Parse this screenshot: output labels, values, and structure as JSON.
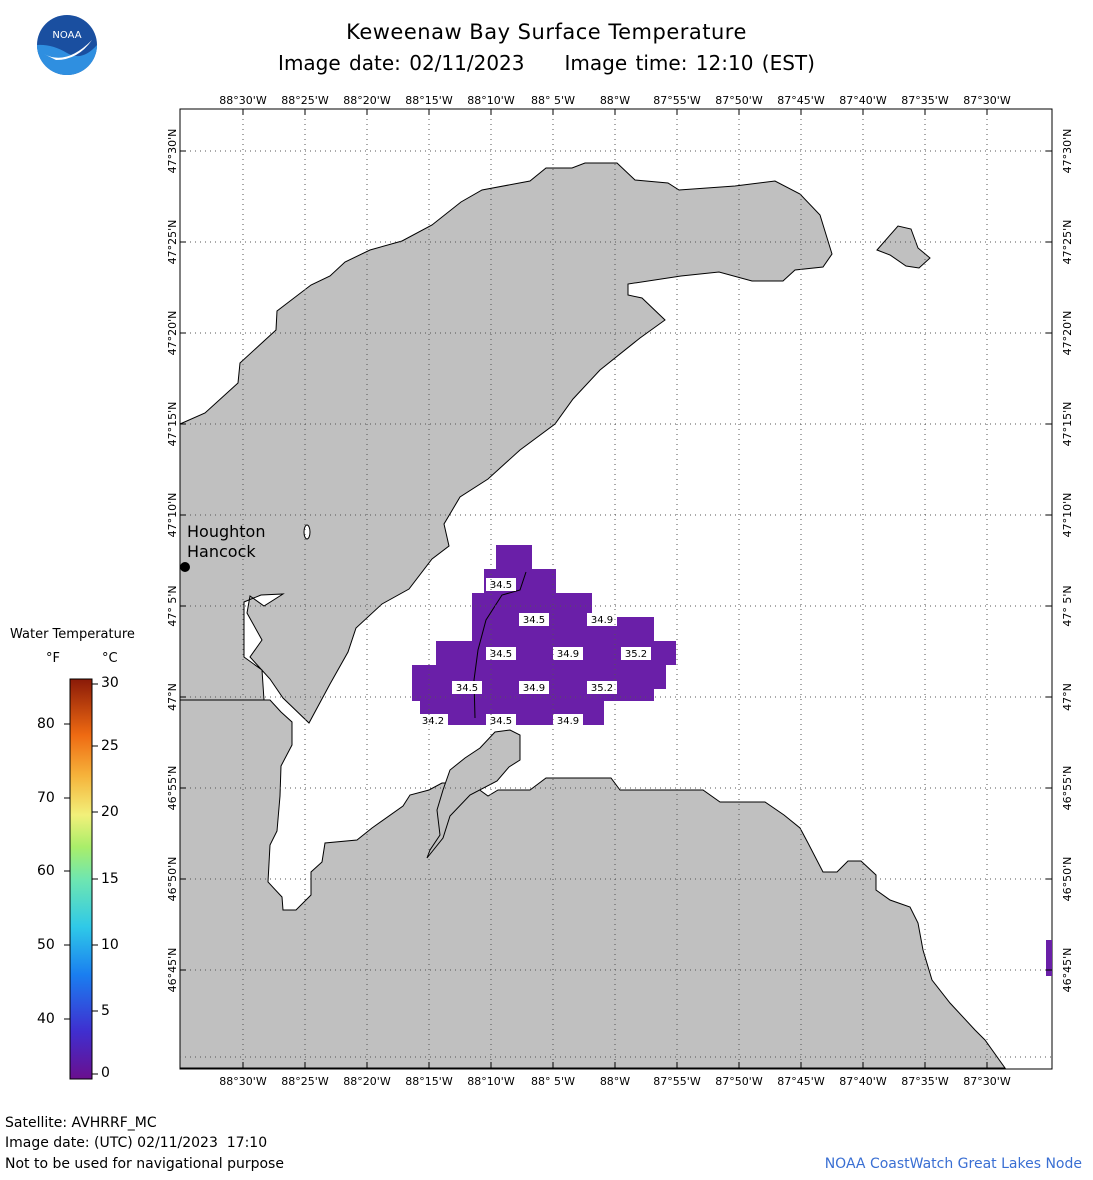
{
  "header": {
    "title": "Keweenaw Bay Surface Temperature",
    "image_date": "Image date: 02/11/2023",
    "image_time": "Image time: 12:10 (EST)"
  },
  "logo": {
    "text": "NOAA",
    "icon": "noaa-logo"
  },
  "map": {
    "lon_labels": [
      "88°30'W",
      "88°25'W",
      "88°20'W",
      "88°15'W",
      "88°10'W",
      "88° 5'W",
      "88°W",
      "87°55'W",
      "87°50'W",
      "87°45'W",
      "87°40'W",
      "87°35'W",
      "87°30'W"
    ],
    "lat_labels": [
      "47°30'N",
      "47°25'N",
      "47°20'N",
      "47°15'N",
      "47°10'N",
      "47° 5'N",
      "47°N",
      "46°55'N",
      "46°50'N",
      "46°45'N"
    ],
    "city": {
      "name_1": "Houghton",
      "name_2": "Hancock"
    },
    "temperature_labels": [
      "34.5",
      "34.5",
      "34.9",
      "34.5",
      "34.9",
      "35.2",
      "34.5",
      "34.9",
      "35.2",
      "34.2",
      "34.5",
      "34.9"
    ],
    "colors": {
      "land": "#c0c0c0",
      "water": "#ffffff",
      "sst_cell": "#6a1fa8",
      "grid": "#555555"
    }
  },
  "legend": {
    "title": "Water Temperature",
    "unit_f": "°F",
    "unit_c": "°C",
    "f_ticks": [
      "80",
      "70",
      "60",
      "50",
      "40"
    ],
    "c_ticks": [
      "30",
      "25",
      "20",
      "15",
      "10",
      "5",
      "0"
    ]
  },
  "footer": {
    "satellite": "Satellite: AVHRRF_MC",
    "utc_date": "Image date: (UTC) 02/11/2023  17:10",
    "disclaimer": "Not to be used for navigational purpose",
    "credit": "NOAA CoastWatch Great Lakes Node"
  }
}
